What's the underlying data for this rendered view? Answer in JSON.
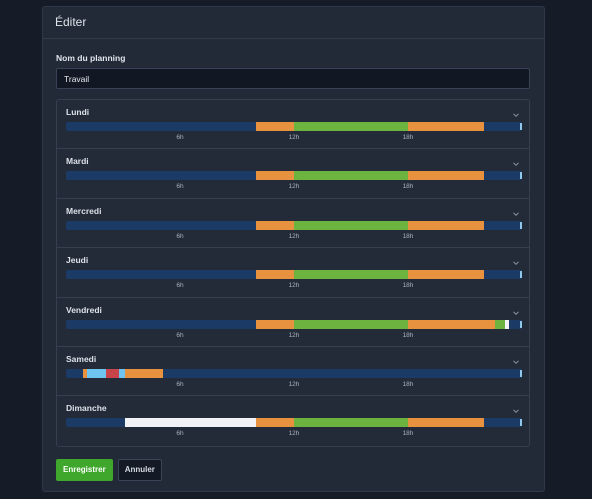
{
  "modal": {
    "title": "Éditer"
  },
  "form": {
    "name_label": "Nom du planning",
    "name_value": "Travail",
    "save_label": "Enregistrer",
    "cancel_label": "Annuler"
  },
  "colors": {
    "off": "#1c3a66",
    "orange": "#e8913f",
    "green": "#6db33f",
    "light_blue": "#6ec3ef",
    "red": "#c9444a",
    "white": "#f1f3f6",
    "save": "#3fa72c"
  },
  "ticks": [
    "6h",
    "12h",
    "18h"
  ],
  "days": [
    {
      "name": "Lundi",
      "segments": [
        {
          "from": 10.0,
          "to": 12.0,
          "color": "orange"
        },
        {
          "from": 12.0,
          "to": 18.0,
          "color": "green"
        },
        {
          "from": 18.0,
          "to": 22.0,
          "color": "orange"
        }
      ]
    },
    {
      "name": "Mardi",
      "segments": [
        {
          "from": 10.0,
          "to": 12.0,
          "color": "orange"
        },
        {
          "from": 12.0,
          "to": 18.0,
          "color": "green"
        },
        {
          "from": 18.0,
          "to": 22.0,
          "color": "orange"
        }
      ]
    },
    {
      "name": "Mercredi",
      "segments": [
        {
          "from": 10.0,
          "to": 12.0,
          "color": "orange"
        },
        {
          "from": 12.0,
          "to": 18.0,
          "color": "green"
        },
        {
          "from": 18.0,
          "to": 22.0,
          "color": "orange"
        }
      ]
    },
    {
      "name": "Jeudi",
      "segments": [
        {
          "from": 10.0,
          "to": 12.0,
          "color": "orange"
        },
        {
          "from": 12.0,
          "to": 18.0,
          "color": "green"
        },
        {
          "from": 18.0,
          "to": 22.0,
          "color": "orange"
        }
      ]
    },
    {
      "name": "Vendredi",
      "segments": [
        {
          "from": 10.0,
          "to": 12.0,
          "color": "orange"
        },
        {
          "from": 12.0,
          "to": 18.0,
          "color": "green"
        },
        {
          "from": 18.0,
          "to": 22.6,
          "color": "orange"
        },
        {
          "from": 22.6,
          "to": 23.1,
          "color": "green"
        },
        {
          "from": 23.1,
          "to": 23.3,
          "color": "white"
        }
      ]
    },
    {
      "name": "Samedi",
      "segments": [
        {
          "from": 0.9,
          "to": 1.1,
          "color": "orange"
        },
        {
          "from": 1.1,
          "to": 2.1,
          "color": "light_blue"
        },
        {
          "from": 2.1,
          "to": 2.8,
          "color": "red"
        },
        {
          "from": 2.8,
          "to": 3.1,
          "color": "light_blue"
        },
        {
          "from": 3.1,
          "to": 5.1,
          "color": "orange"
        }
      ]
    },
    {
      "name": "Dimanche",
      "segments": [
        {
          "from": 3.1,
          "to": 10.0,
          "color": "white"
        },
        {
          "from": 10.0,
          "to": 12.0,
          "color": "orange"
        },
        {
          "from": 12.0,
          "to": 18.0,
          "color": "green"
        },
        {
          "from": 18.0,
          "to": 22.0,
          "color": "orange"
        }
      ]
    }
  ]
}
